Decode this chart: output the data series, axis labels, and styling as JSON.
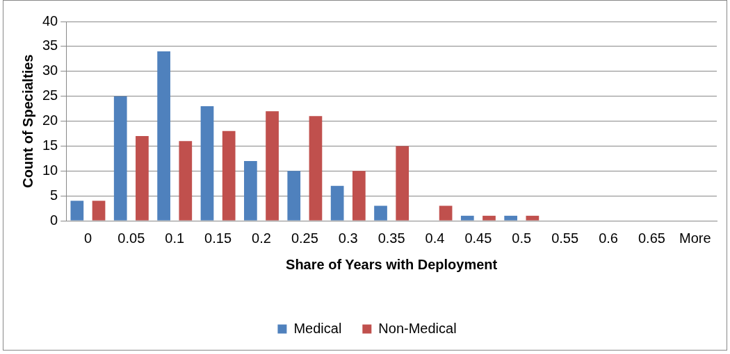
{
  "chart_data": {
    "type": "bar",
    "xlabel": "Share of Years with Deployment",
    "ylabel": "Count of Specialties",
    "categories": [
      "0",
      "0.05",
      "0.1",
      "0.15",
      "0.2",
      "0.25",
      "0.3",
      "0.35",
      "0.4",
      "0.45",
      "0.5",
      "0.55",
      "0.6",
      "0.65",
      "More"
    ],
    "series": [
      {
        "name": "Medical",
        "color": "#4f81bd",
        "values": [
          4,
          25,
          34,
          23,
          12,
          10,
          7,
          3,
          0,
          1,
          1,
          0,
          0,
          0,
          0
        ]
      },
      {
        "name": "Non-Medical",
        "color": "#c0504d",
        "values": [
          4,
          17,
          16,
          18,
          22,
          21,
          10,
          15,
          3,
          1,
          1,
          0,
          0,
          0,
          0
        ]
      }
    ],
    "ylim": [
      0,
      40
    ],
    "yticks": [
      0,
      5,
      10,
      15,
      20,
      25,
      30,
      35,
      40
    ],
    "grid": "y",
    "legend": "bottom"
  }
}
